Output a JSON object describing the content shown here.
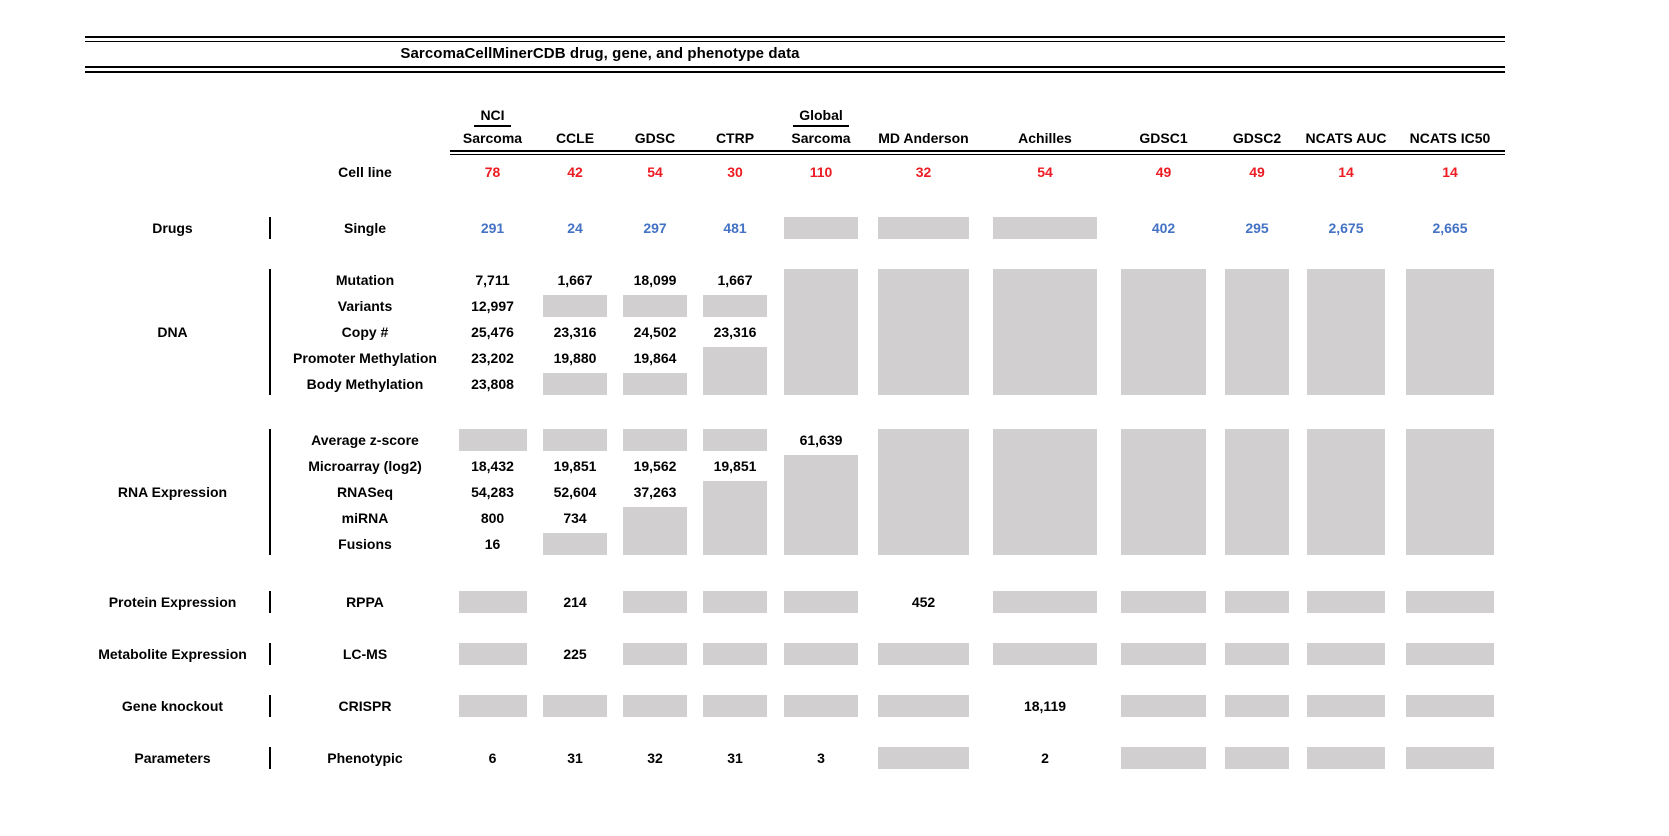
{
  "colors": {
    "cell_line_count_red": "#ed1c24",
    "drug_count_blue": "#4472c4",
    "no_data_box_gray": "#d1cfcf"
  },
  "chart_data": {
    "type": "table",
    "title": "SarcomaCellMinerCDB drug, gene, and phenotype data",
    "legend_note": "gray box = value not shown/available for that source",
    "columns": [
      {
        "top": "NCI",
        "label": "Sarcoma"
      },
      {
        "label": "CCLE"
      },
      {
        "label": "GDSC"
      },
      {
        "label": "CTRP"
      },
      {
        "top": "Global",
        "label": "Sarcoma"
      },
      {
        "label": "MD Anderson"
      },
      {
        "label": "Achilles"
      },
      {
        "label": "GDSC1"
      },
      {
        "label": "GDSC2"
      },
      {
        "label": "NCATS AUC"
      },
      {
        "label": "NCATS IC50"
      }
    ],
    "cell_line": {
      "label": "Cell line",
      "counts": [
        "78",
        "42",
        "54",
        "30",
        "110",
        "32",
        "54",
        "49",
        "49",
        "14",
        "14"
      ]
    },
    "sections": [
      {
        "category": "Drugs",
        "color": "blue",
        "rows": [
          {
            "label": "Single",
            "cells": [
              "291",
              "24",
              "297",
              "481",
              null,
              null,
              null,
              "402",
              "295",
              "2,675",
              "2,665"
            ]
          }
        ]
      },
      {
        "category": "DNA",
        "blocks": [
          {
            "col": 3,
            "row": 3,
            "span": 2
          },
          {
            "col": 4,
            "row": 0,
            "span": 5
          },
          {
            "col": 5,
            "row": 0,
            "span": 5
          },
          {
            "col": 6,
            "row": 0,
            "span": 5
          },
          {
            "col": 7,
            "row": 0,
            "span": 5
          },
          {
            "col": 8,
            "row": 0,
            "span": 5
          },
          {
            "col": 9,
            "row": 0,
            "span": 5
          },
          {
            "col": 10,
            "row": 0,
            "span": 5
          }
        ],
        "rows": [
          {
            "label": "Mutation",
            "cells": [
              "7,711",
              "1,667",
              "18,099",
              "1,667",
              "",
              "",
              "",
              "",
              "",
              "",
              ""
            ]
          },
          {
            "label": "Variants",
            "cells": [
              "12,997",
              null,
              null,
              null,
              "",
              "",
              "",
              "",
              "",
              "",
              ""
            ]
          },
          {
            "label": "Copy #",
            "cells": [
              "25,476",
              "23,316",
              "24,502",
              "23,316",
              "",
              "",
              "",
              "",
              "",
              "",
              ""
            ]
          },
          {
            "label": "Promoter Methylation",
            "cells": [
              "23,202",
              "19,880",
              "19,864",
              "",
              "",
              "",
              "",
              "",
              "",
              "",
              ""
            ]
          },
          {
            "label": "Body Methylation",
            "cells": [
              "23,808",
              null,
              null,
              "",
              "",
              "",
              "",
              "",
              "",
              "",
              ""
            ]
          }
        ]
      },
      {
        "category": "RNA Expression",
        "blocks": [
          {
            "col": 2,
            "row": 3,
            "span": 2
          },
          {
            "col": 3,
            "row": 2,
            "span": 3
          },
          {
            "col": 4,
            "row": 1,
            "span": 4
          },
          {
            "col": 5,
            "row": 0,
            "span": 5
          },
          {
            "col": 6,
            "row": 0,
            "span": 5
          },
          {
            "col": 7,
            "row": 0,
            "span": 5
          },
          {
            "col": 8,
            "row": 0,
            "span": 5
          },
          {
            "col": 9,
            "row": 0,
            "span": 5
          },
          {
            "col": 10,
            "row": 0,
            "span": 5
          }
        ],
        "rows": [
          {
            "label": "Average z-score",
            "cells": [
              null,
              null,
              null,
              null,
              "61,639",
              "",
              "",
              "",
              "",
              "",
              ""
            ]
          },
          {
            "label": "Microarray (log2)",
            "cells": [
              "18,432",
              "19,851",
              "19,562",
              "19,851",
              "",
              "",
              "",
              "",
              "",
              "",
              ""
            ]
          },
          {
            "label": "RNASeq",
            "cells": [
              "54,283",
              "52,604",
              "37,263",
              "",
              "",
              "",
              "",
              "",
              "",
              "",
              ""
            ]
          },
          {
            "label": "miRNA",
            "cells": [
              "800",
              "734",
              "",
              "",
              "",
              "",
              "",
              "",
              "",
              "",
              ""
            ]
          },
          {
            "label": "Fusions",
            "cells": [
              "16",
              null,
              "",
              "",
              "",
              "",
              "",
              "",
              "",
              "",
              ""
            ]
          }
        ]
      },
      {
        "category": "Protein Expression",
        "rows": [
          {
            "label": "RPPA",
            "cells": [
              null,
              "214",
              null,
              null,
              null,
              "452",
              null,
              null,
              null,
              null,
              null
            ]
          }
        ]
      },
      {
        "category": "Metabolite Expression",
        "rows": [
          {
            "label": "LC-MS",
            "cells": [
              null,
              "225",
              null,
              null,
              null,
              null,
              null,
              null,
              null,
              null,
              null
            ]
          }
        ]
      },
      {
        "category": "Gene knockout",
        "rows": [
          {
            "label": "CRISPR",
            "cells": [
              null,
              null,
              null,
              null,
              null,
              null,
              "18,119",
              null,
              null,
              null,
              null
            ]
          }
        ]
      },
      {
        "category": "Parameters",
        "rows": [
          {
            "label": "Phenotypic",
            "cells": [
              "6",
              "31",
              "32",
              "31",
              "3",
              null,
              "2",
              null,
              null,
              null,
              null
            ]
          }
        ]
      }
    ]
  }
}
